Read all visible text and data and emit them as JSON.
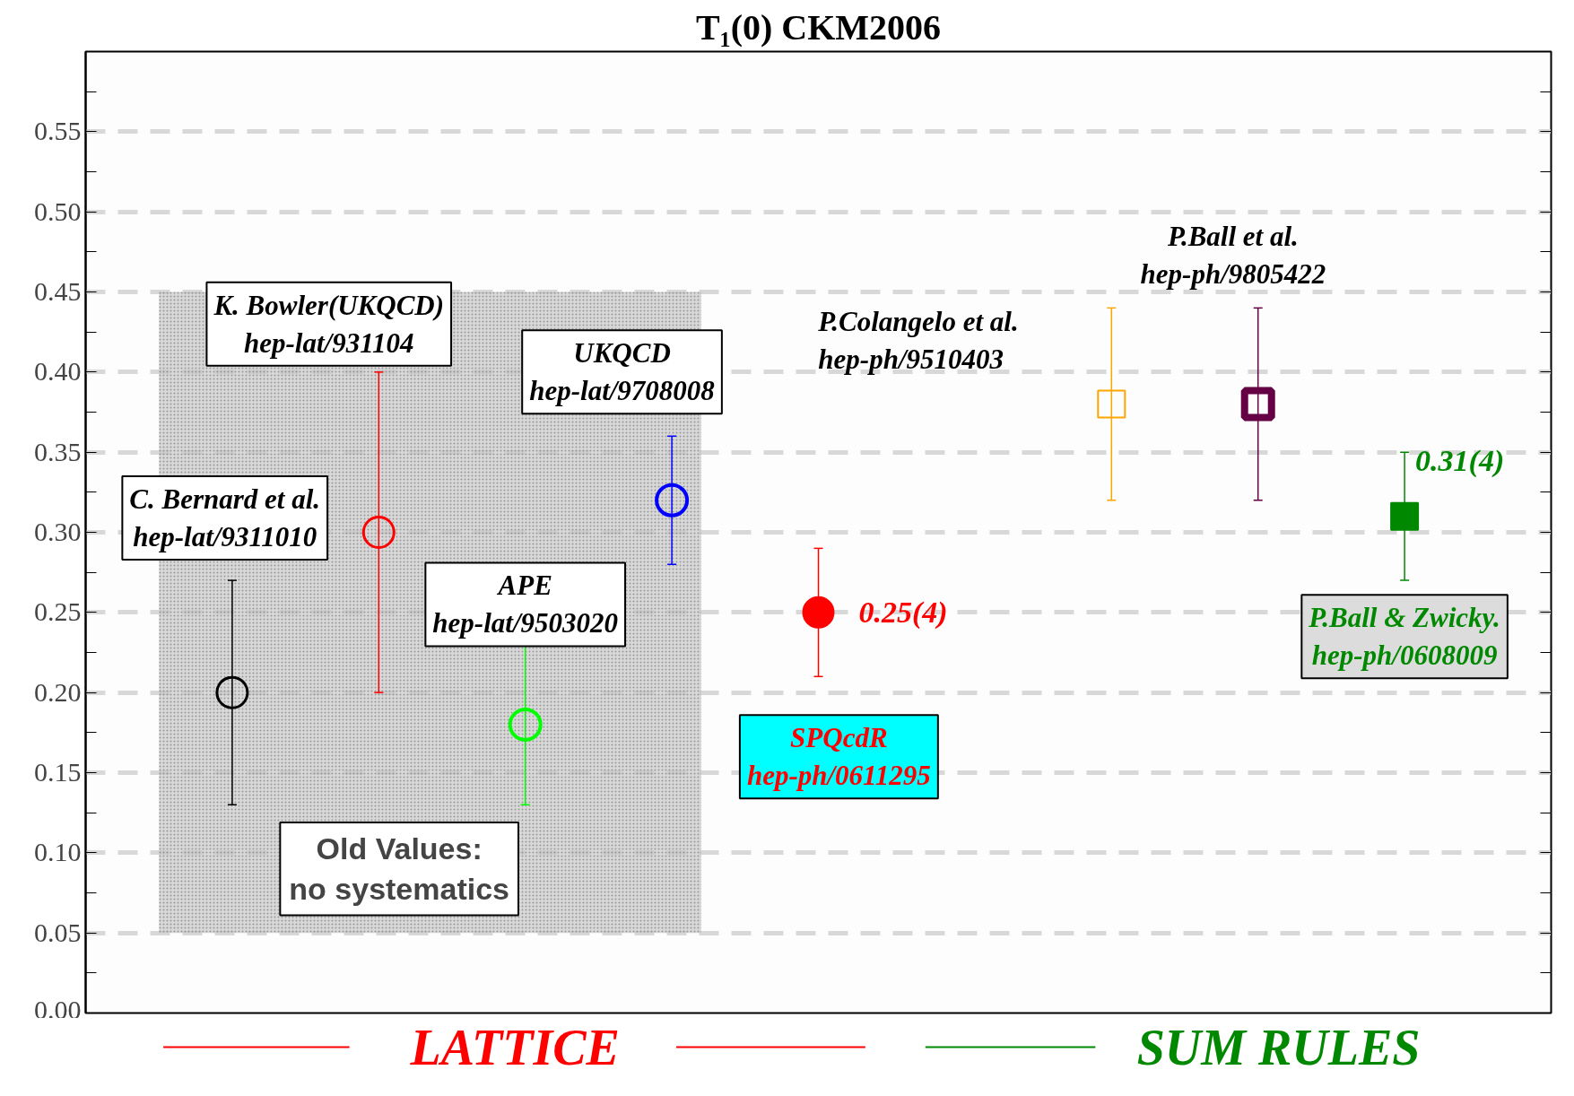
{
  "chart_data": {
    "type": "scatter",
    "title": "T₁(0) CKM2006",
    "categories": [
      null,
      null,
      null,
      null,
      null,
      null,
      null,
      null,
      null
    ],
    "series": [
      {
        "color": "#000000",
        "marker": "circle",
        "values": [
          0.2,
          null,
          null,
          null,
          null,
          null,
          null,
          null,
          null
        ],
        "errors": [
          0.07,
          null,
          null,
          null,
          null,
          null,
          null,
          null,
          null
        ]
      },
      {
        "color": "#ff0000",
        "marker": "circle",
        "values": [
          null,
          0.3,
          null,
          null,
          null,
          null,
          null,
          null,
          null
        ],
        "errors": [
          null,
          0.1,
          null,
          null,
          null,
          null,
          null,
          null,
          null
        ]
      },
      {
        "color": "#00ff00",
        "marker": "circle",
        "values": [
          null,
          null,
          0.18,
          null,
          null,
          null,
          null,
          null,
          null
        ],
        "errors": [
          null,
          null,
          0.05,
          null,
          null,
          null,
          null,
          null,
          null
        ]
      },
      {
        "color": "#0000ff",
        "marker": "circle",
        "values": [
          null,
          null,
          null,
          0.32,
          null,
          null,
          null,
          null,
          null
        ],
        "errors": [
          null,
          null,
          null,
          0.04,
          null,
          null,
          null,
          null,
          null
        ]
      },
      {
        "color": "#ff0000",
        "marker": "circle",
        "values": [
          null,
          null,
          null,
          null,
          0.25,
          null,
          null,
          null,
          null
        ],
        "errors": [
          null,
          null,
          null,
          null,
          0.04,
          null,
          null,
          null,
          null
        ],
        "value_labels": [
          null,
          null,
          null,
          null,
          "0.25(4)",
          null,
          null,
          null,
          null
        ]
      },
      {
        "color": "#ffa500",
        "marker": "square",
        "values": [
          null,
          null,
          null,
          null,
          null,
          null,
          0.38,
          null,
          null
        ],
        "errors": [
          null,
          null,
          null,
          null,
          null,
          null,
          0.06,
          null,
          null
        ]
      },
      {
        "color": "#660044",
        "marker": "square",
        "values": [
          null,
          null,
          null,
          null,
          null,
          null,
          null,
          0.38,
          null
        ],
        "errors": [
          null,
          null,
          null,
          null,
          null,
          null,
          null,
          0.06,
          null
        ]
      },
      {
        "color": "#008800",
        "marker": "square",
        "values": [
          null,
          null,
          null,
          null,
          null,
          null,
          null,
          null,
          0.31
        ],
        "errors": [
          null,
          null,
          null,
          null,
          null,
          null,
          null,
          null,
          0.04
        ],
        "value_labels": [
          null,
          null,
          null,
          null,
          null,
          null,
          null,
          null,
          "0.31(4)"
        ]
      }
    ],
    "ylim": [
      0,
      0.6
    ],
    "yticks": [
      {
        "value": 0,
        "label": "0.00"
      },
      {
        "value": 0.025,
        "label": null
      },
      {
        "value": 0.05,
        "label": "0.05"
      },
      {
        "value": 0.075,
        "label": null
      },
      {
        "value": 0.1,
        "label": "0.10"
      },
      {
        "value": 0.125,
        "label": null
      },
      {
        "value": 0.15,
        "label": "0.15"
      },
      {
        "value": 0.175,
        "label": null
      },
      {
        "value": 0.2,
        "label": "0.20"
      },
      {
        "value": 0.225,
        "label": null
      },
      {
        "value": 0.25,
        "label": "0.25"
      },
      {
        "value": 0.275,
        "label": null
      },
      {
        "value": 0.3,
        "label": "0.30"
      },
      {
        "value": 0.325,
        "label": null
      },
      {
        "value": 0.35,
        "label": "0.35"
      },
      {
        "value": 0.375,
        "label": null
      },
      {
        "value": 0.4,
        "label": "0.40"
      },
      {
        "value": 0.425,
        "label": null
      },
      {
        "value": 0.45,
        "label": "0.45"
      },
      {
        "value": 0.475,
        "label": null
      },
      {
        "value": 0.5,
        "label": "0.50"
      },
      {
        "value": 0.525,
        "label": null
      },
      {
        "value": 0.55,
        "label": "0.55"
      },
      {
        "value": 0.575,
        "label": null
      }
    ],
    "bands": [
      {
        "axis": "y",
        "from": 0.05,
        "to": 0.45,
        "label": "Old Values:\nno systematics",
        "color": "#c8c8c8"
      }
    ],
    "annotations": [
      "C. Bernard et al.\nhep-lat/9311010",
      "K. Bowler(UKQCD)\nhep-lat/931104",
      "APE\nhep-lat/9503020",
      "UKQCD\nhep-lat/9708008",
      "SPQcdR\nhep-ph/0611295",
      "P.Colangelo et al.\nhep-ph/9510403",
      "P.Ball et al.\nhep-ph/9805422",
      "P.Ball & Zwicky.\nhep-ph/0608009",
      "LATTICE",
      "SUM RULES"
    ],
    "grid": "y"
  }
}
